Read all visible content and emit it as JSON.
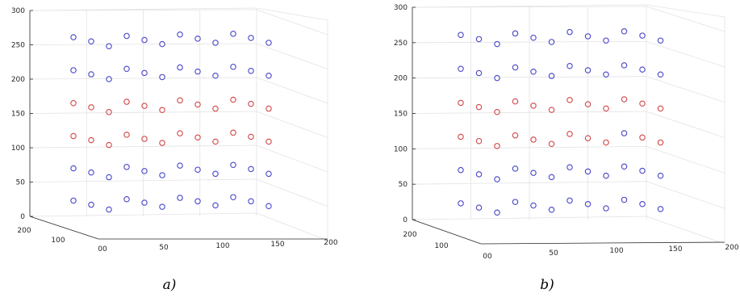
{
  "chart_data": [
    {
      "type": "scatter",
      "caption": "a)",
      "z_ticks": [
        "0",
        "50",
        "100",
        "150",
        "200",
        "250",
        "300"
      ],
      "x_ticks": [
        "00",
        "50",
        "100",
        "150",
        "200"
      ],
      "y_ticks": [
        "200",
        "100"
      ],
      "zlim": [
        0,
        300
      ],
      "grid": true,
      "series": [
        {
          "color": "#4646c8",
          "points": [
            {
              "z": 23,
              "row": 0
            },
            {
              "z": 17,
              "row": 1
            },
            {
              "z": 10,
              "row": 2
            },
            {
              "z": 25,
              "row": 3
            },
            {
              "z": 20,
              "row": 4
            },
            {
              "z": 14,
              "row": 5
            },
            {
              "z": 27,
              "row": 6
            },
            {
              "z": 22,
              "row": 7
            },
            {
              "z": 16,
              "row": 8
            },
            {
              "z": 28,
              "row": 9
            },
            {
              "z": 22,
              "row": 10
            },
            {
              "z": 15,
              "row": 11
            },
            {
              "z": 70,
              "row": 0
            },
            {
              "z": 64,
              "row": 1
            },
            {
              "z": 57,
              "row": 2
            },
            {
              "z": 72,
              "row": 3
            },
            {
              "z": 66,
              "row": 4
            },
            {
              "z": 60,
              "row": 5
            },
            {
              "z": 74,
              "row": 6
            },
            {
              "z": 68,
              "row": 7
            },
            {
              "z": 62,
              "row": 8
            },
            {
              "z": 75,
              "row": 9
            },
            {
              "z": 69,
              "row": 10
            },
            {
              "z": 62,
              "row": 11
            },
            {
              "z": 213,
              "row": 0
            },
            {
              "z": 207,
              "row": 1
            },
            {
              "z": 200,
              "row": 2
            },
            {
              "z": 215,
              "row": 3
            },
            {
              "z": 209,
              "row": 4
            },
            {
              "z": 203,
              "row": 5
            },
            {
              "z": 217,
              "row": 6
            },
            {
              "z": 211,
              "row": 7
            },
            {
              "z": 205,
              "row": 8
            },
            {
              "z": 218,
              "row": 9
            },
            {
              "z": 212,
              "row": 10
            },
            {
              "z": 205,
              "row": 11
            },
            {
              "z": 261,
              "row": 0
            },
            {
              "z": 255,
              "row": 1
            },
            {
              "z": 248,
              "row": 2
            },
            {
              "z": 263,
              "row": 3
            },
            {
              "z": 257,
              "row": 4
            },
            {
              "z": 251,
              "row": 5
            },
            {
              "z": 265,
              "row": 6
            },
            {
              "z": 259,
              "row": 7
            },
            {
              "z": 253,
              "row": 8
            },
            {
              "z": 266,
              "row": 9
            },
            {
              "z": 260,
              "row": 10
            },
            {
              "z": 253,
              "row": 11
            }
          ]
        },
        {
          "color": "#d24646",
          "points": [
            {
              "z": 117,
              "row": 0
            },
            {
              "z": 111,
              "row": 1
            },
            {
              "z": 104,
              "row": 2
            },
            {
              "z": 119,
              "row": 3
            },
            {
              "z": 113,
              "row": 4
            },
            {
              "z": 107,
              "row": 5
            },
            {
              "z": 121,
              "row": 6
            },
            {
              "z": 115,
              "row": 7
            },
            {
              "z": 109,
              "row": 8
            },
            {
              "z": 122,
              "row": 9
            },
            {
              "z": 116,
              "row": 10
            },
            {
              "z": 109,
              "row": 11
            },
            {
              "z": 165,
              "row": 0
            },
            {
              "z": 159,
              "row": 1
            },
            {
              "z": 152,
              "row": 2
            },
            {
              "z": 167,
              "row": 3
            },
            {
              "z": 161,
              "row": 4
            },
            {
              "z": 155,
              "row": 5
            },
            {
              "z": 169,
              "row": 6
            },
            {
              "z": 163,
              "row": 7
            },
            {
              "z": 157,
              "row": 8
            },
            {
              "z": 170,
              "row": 9
            },
            {
              "z": 164,
              "row": 10
            },
            {
              "z": 157,
              "row": 11
            }
          ]
        }
      ]
    },
    {
      "type": "scatter",
      "caption": "b)",
      "z_ticks": [
        "0",
        "50",
        "100",
        "150",
        "200",
        "250",
        "300"
      ],
      "x_ticks": [
        "00",
        "50",
        "100",
        "150",
        "200"
      ],
      "y_ticks": [
        "200",
        "100"
      ],
      "zlim": [
        0,
        300
      ],
      "grid": true,
      "series": [
        {
          "color": "#4646c8",
          "points": [
            {
              "z": 23,
              "row": 0
            },
            {
              "z": 17,
              "row": 1
            },
            {
              "z": 10,
              "row": 2
            },
            {
              "z": 25,
              "row": 3
            },
            {
              "z": 20,
              "row": 4
            },
            {
              "z": 14,
              "row": 5
            },
            {
              "z": 27,
              "row": 6
            },
            {
              "z": 22,
              "row": 7
            },
            {
              "z": 16,
              "row": 8
            },
            {
              "z": 28,
              "row": 9
            },
            {
              "z": 22,
              "row": 10
            },
            {
              "z": 15,
              "row": 11
            },
            {
              "z": 70,
              "row": 0
            },
            {
              "z": 64,
              "row": 1
            },
            {
              "z": 57,
              "row": 2
            },
            {
              "z": 72,
              "row": 3
            },
            {
              "z": 66,
              "row": 4
            },
            {
              "z": 60,
              "row": 5
            },
            {
              "z": 74,
              "row": 6
            },
            {
              "z": 68,
              "row": 7
            },
            {
              "z": 62,
              "row": 8
            },
            {
              "z": 75,
              "row": 9
            },
            {
              "z": 69,
              "row": 10
            },
            {
              "z": 62,
              "row": 11
            },
            {
              "z": 213,
              "row": 0
            },
            {
              "z": 207,
              "row": 1
            },
            {
              "z": 200,
              "row": 2
            },
            {
              "z": 215,
              "row": 3
            },
            {
              "z": 209,
              "row": 4
            },
            {
              "z": 203,
              "row": 5
            },
            {
              "z": 217,
              "row": 6
            },
            {
              "z": 211,
              "row": 7
            },
            {
              "z": 205,
              "row": 8
            },
            {
              "z": 218,
              "row": 9
            },
            {
              "z": 212,
              "row": 10
            },
            {
              "z": 205,
              "row": 11
            },
            {
              "z": 261,
              "row": 0
            },
            {
              "z": 255,
              "row": 1
            },
            {
              "z": 248,
              "row": 2
            },
            {
              "z": 263,
              "row": 3
            },
            {
              "z": 257,
              "row": 4
            },
            {
              "z": 251,
              "row": 5
            },
            {
              "z": 265,
              "row": 6
            },
            {
              "z": 259,
              "row": 7
            },
            {
              "z": 253,
              "row": 8
            },
            {
              "z": 266,
              "row": 9
            },
            {
              "z": 260,
              "row": 10
            },
            {
              "z": 253,
              "row": 11
            },
            {
              "z": 122,
              "row": 9
            }
          ]
        },
        {
          "color": "#d24646",
          "points": [
            {
              "z": 117,
              "row": 0
            },
            {
              "z": 111,
              "row": 1
            },
            {
              "z": 104,
              "row": 2
            },
            {
              "z": 119,
              "row": 3
            },
            {
              "z": 113,
              "row": 4
            },
            {
              "z": 107,
              "row": 5
            },
            {
              "z": 121,
              "row": 6
            },
            {
              "z": 115,
              "row": 7
            },
            {
              "z": 109,
              "row": 8
            },
            {
              "z": 116,
              "row": 10
            },
            {
              "z": 109,
              "row": 11
            },
            {
              "z": 165,
              "row": 0
            },
            {
              "z": 159,
              "row": 1
            },
            {
              "z": 152,
              "row": 2
            },
            {
              "z": 167,
              "row": 3
            },
            {
              "z": 161,
              "row": 4
            },
            {
              "z": 155,
              "row": 5
            },
            {
              "z": 169,
              "row": 6
            },
            {
              "z": 163,
              "row": 7
            },
            {
              "z": 157,
              "row": 8
            },
            {
              "z": 170,
              "row": 9
            },
            {
              "z": 164,
              "row": 10
            },
            {
              "z": 157,
              "row": 11
            }
          ]
        }
      ]
    }
  ]
}
